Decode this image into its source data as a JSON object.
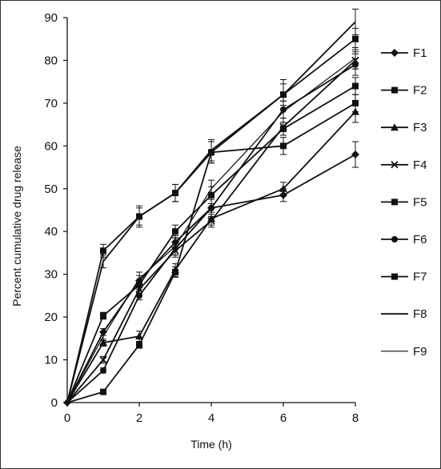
{
  "chart_data": {
    "type": "line",
    "xlabel": "Time (h)",
    "ylabel": "Percent cumulative drug release",
    "xlim": [
      0,
      8
    ],
    "ylim": [
      0,
      90
    ],
    "xticks": [
      "0",
      "2",
      "4",
      "6",
      "8"
    ],
    "yticks": [
      "0",
      "10",
      "20",
      "30",
      "40",
      "50",
      "60",
      "70",
      "80",
      "90"
    ],
    "x": [
      0,
      1,
      2,
      3,
      4,
      6,
      8
    ],
    "grid": false,
    "legend_position": "right",
    "series": [
      {
        "name": "F1",
        "marker": "diamond",
        "values": [
          0,
          16.5,
          28.5,
          37.5,
          45.5,
          48.5,
          58
        ],
        "errors": [
          0,
          0.8,
          1.2,
          1.5,
          2.5,
          1.5,
          3
        ]
      },
      {
        "name": "F2",
        "marker": "square",
        "values": [
          0,
          20.3,
          27.5,
          40,
          48.5,
          64,
          74
        ],
        "errors": [
          0,
          0.8,
          1,
          1.5,
          2,
          1.5,
          2
        ]
      },
      {
        "name": "F3",
        "marker": "triangle",
        "values": [
          0,
          14,
          15.5,
          31,
          43,
          50,
          68
        ],
        "errors": [
          0,
          0.8,
          1.2,
          1.5,
          1.5,
          1.5,
          2.5
        ]
      },
      {
        "name": "F4",
        "marker": "x",
        "values": [
          0,
          10,
          26.5,
          35.5,
          42.5,
          64.5,
          80
        ],
        "errors": [
          0,
          0.8,
          1,
          1.5,
          1.5,
          2,
          2
        ]
      },
      {
        "name": "F5",
        "marker": "square",
        "values": [
          0,
          2.5,
          13.5,
          30.5,
          58.5,
          60,
          70
        ],
        "errors": [
          0,
          0.6,
          0.8,
          1.2,
          2.5,
          2,
          2
        ]
      },
      {
        "name": "F6",
        "marker": "circle",
        "values": [
          0,
          7.5,
          25,
          36,
          45.5,
          68.5,
          79
        ],
        "errors": [
          0,
          0.6,
          1,
          1.5,
          2,
          2,
          2.5
        ]
      },
      {
        "name": "F7",
        "marker": "square",
        "values": [
          0,
          35.5,
          43.5,
          49,
          58.5,
          72,
          85
        ],
        "errors": [
          0,
          1.5,
          2,
          2,
          2.5,
          2.5,
          2.5
        ]
      },
      {
        "name": "F8",
        "marker": "none",
        "values": [
          0,
          33,
          43.5,
          49,
          59,
          72,
          89
        ],
        "errors": [
          0,
          1.5,
          2.5,
          2,
          2.5,
          3.5,
          3
        ]
      },
      {
        "name": "F9",
        "marker": "none",
        "values": [
          0,
          15.5,
          29,
          36.5,
          50,
          68,
          80.5
        ],
        "errors": [
          0,
          1,
          1.5,
          2,
          2,
          2.5,
          2.5
        ]
      }
    ]
  },
  "colors": {
    "line": "#111111",
    "axis": "#111111",
    "background": "#ffffff"
  }
}
